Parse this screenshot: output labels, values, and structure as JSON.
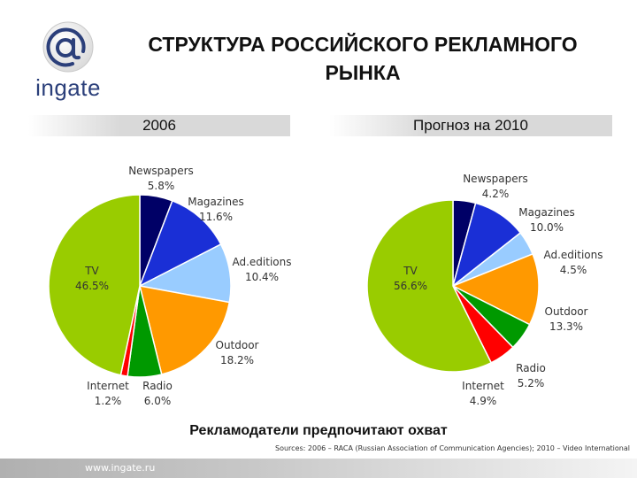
{
  "logo": {
    "text": "ingate"
  },
  "title_line1": "СТРУКТУРА РОССИЙСКОГО РЕКЛАМНОГО",
  "title_line2": "РЫНКА",
  "chart_data": [
    {
      "type": "pie",
      "title": "2006",
      "slices": [
        {
          "name": "Newspapers",
          "value": 5.8,
          "label": "5.8%",
          "color": "#000066"
        },
        {
          "name": "Magazines",
          "value": 11.6,
          "label": "11.6%",
          "color": "#1a2fd6"
        },
        {
          "name": "Ad.editions",
          "value": 10.4,
          "label": "10.4%",
          "color": "#99ccff"
        },
        {
          "name": "Outdoor",
          "value": 18.2,
          "label": "18.2%",
          "color": "#ff9900"
        },
        {
          "name": "Radio",
          "value": 6.0,
          "label": "6.0%",
          "color": "#009900"
        },
        {
          "name": "Internet",
          "value": 1.2,
          "label": "1.2%",
          "color": "#ff0000"
        },
        {
          "name": "TV",
          "value": 46.5,
          "label": "46.5%",
          "color": "#99cc00"
        }
      ]
    },
    {
      "type": "pie",
      "title": "Прогноз на 2010",
      "slices": [
        {
          "name": "Newspapers",
          "value": 4.2,
          "label": "4.2%",
          "color": "#000066"
        },
        {
          "name": "Magazines",
          "value": 10.0,
          "label": "10.0%",
          "color": "#1a2fd6"
        },
        {
          "name": "Ad.editions",
          "value": 4.5,
          "label": "4.5%",
          "color": "#99ccff"
        },
        {
          "name": "Outdoor",
          "value": 13.3,
          "label": "13.3%",
          "color": "#ff9900"
        },
        {
          "name": "Radio",
          "value": 5.2,
          "label": "5.2%",
          "color": "#009900"
        },
        {
          "name": "Internet",
          "value": 4.9,
          "label": "4.9%",
          "color": "#ff0000"
        },
        {
          "name": "TV",
          "value": 56.6,
          "label": "56.6%",
          "color": "#99cc00"
        }
      ]
    }
  ],
  "tagline": "Рекламодатели предпочитают охват",
  "sources": "Sources: 2006 – RACA (Russian Association of Communication Agencies); 2010 – Video International",
  "footer": {
    "url": "www.ingate.ru"
  }
}
